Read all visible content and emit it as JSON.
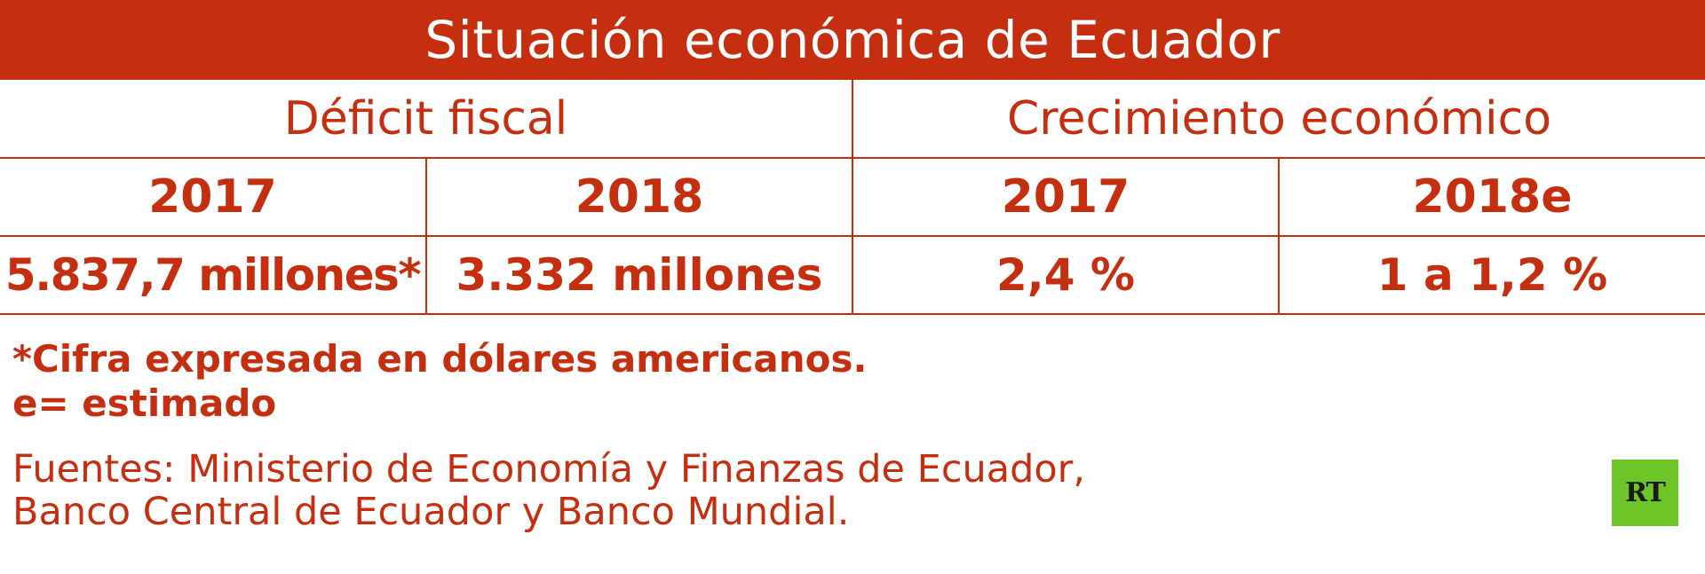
{
  "chart_data": {
    "type": "table",
    "title": "Situación económica de Ecuador",
    "groups": [
      {
        "name": "Déficit fiscal",
        "years": [
          "2017",
          "2018"
        ],
        "values": [
          "5.837,7 millones*",
          "3.332 millones"
        ]
      },
      {
        "name": "Crecimiento económico",
        "years": [
          "2017",
          "2018e"
        ],
        "values": [
          "2,4 %",
          "1 a 1,2 %"
        ]
      }
    ]
  },
  "notes": {
    "footnote": "*Cifra expresada en dólares americanos.",
    "estimate": "e= estimado"
  },
  "sources": {
    "line1": "Fuentes: Ministerio de Economía y Finanzas de Ecuador,",
    "line2": "Banco Central de Ecuador y Banco Mundial."
  },
  "logo": {
    "text": "RT",
    "color": "#6dc528"
  },
  "colors": {
    "accent": "#c52f0f",
    "background": "#ffffff"
  }
}
